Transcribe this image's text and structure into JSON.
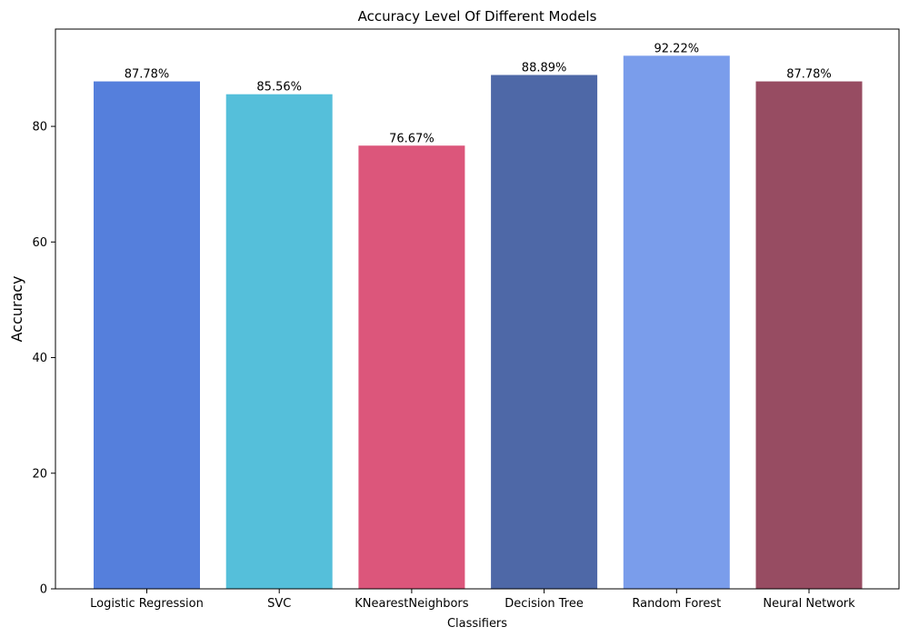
{
  "chart_data": {
    "type": "bar",
    "title": "Accuracy Level Of Different Models",
    "xlabel": "Classifiers",
    "ylabel": "Accuracy",
    "categories": [
      "Logistic Regression",
      "SVC",
      "KNearestNeighbors",
      "Decision Tree",
      "Random Forest",
      "Neural Network"
    ],
    "values": [
      87.78,
      85.56,
      76.67,
      88.89,
      92.22,
      87.78
    ],
    "value_labels": [
      "87.78%",
      "85.56%",
      "76.67%",
      "88.89%",
      "92.22%",
      "87.78%"
    ],
    "colors": [
      "#557fdc",
      "#55bfda",
      "#dc567b",
      "#4e68a7",
      "#7a9deb",
      "#974c62"
    ],
    "ylim": [
      0,
      96.83
    ],
    "yticks": [
      0,
      20,
      40,
      60,
      80
    ],
    "grid": false,
    "legend": "none"
  }
}
